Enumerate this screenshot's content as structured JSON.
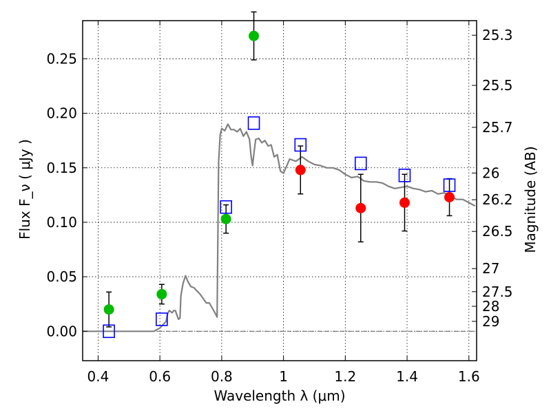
{
  "chart_data": {
    "type": "scatter",
    "title": "",
    "xlabel": "Wavelength  λ (μm)",
    "ylabel": "Flux  F_ν  ( μJy )",
    "ylabel_right": "Magnitude (AB)",
    "xlim": [
      0.35,
      1.625
    ],
    "ylim": [
      -0.027,
      0.285
    ],
    "grid": true,
    "x_ticks": [
      0.4,
      0.6,
      0.8,
      1.0,
      1.2,
      1.4,
      1.6
    ],
    "x_tick_labels": [
      "0.4",
      "0.6",
      "0.8",
      "1",
      "1.2",
      "1.4",
      "1.6"
    ],
    "y_ticks": [
      0.0,
      0.05,
      0.1,
      0.15,
      0.2,
      0.25
    ],
    "y_tick_labels": [
      "0.00",
      "0.05",
      "0.10",
      "0.15",
      "0.20",
      "0.25"
    ],
    "right_ticks": [
      {
        "flux": 0.2716,
        "label": "25.3"
      },
      {
        "flux": 0.2256,
        "label": "25.5"
      },
      {
        "flux": 0.1871,
        "label": "25.7"
      },
      {
        "flux": 0.1452,
        "label": "26"
      },
      {
        "flux": 0.1207,
        "label": "26.2"
      },
      {
        "flux": 0.0916,
        "label": "26.5"
      },
      {
        "flux": 0.0575,
        "label": "27"
      },
      {
        "flux": 0.0363,
        "label": "27.5"
      },
      {
        "flux": 0.0229,
        "label": "28"
      },
      {
        "flux": 0.0091,
        "label": "29"
      }
    ],
    "series": [
      {
        "marker": "circle-green",
        "color": "#00bb00",
        "points": [
          {
            "x": 0.435,
            "y": 0.02,
            "err": 0.016
          },
          {
            "x": 0.606,
            "y": 0.034,
            "err": 0.009
          },
          {
            "x": 0.814,
            "y": 0.103,
            "err": 0.013
          },
          {
            "x": 0.904,
            "y": 0.271,
            "err": 0.022
          }
        ]
      },
      {
        "marker": "circle-red",
        "color": "#ff0000",
        "points": [
          {
            "x": 1.055,
            "y": 0.148,
            "err": 0.022
          },
          {
            "x": 1.25,
            "y": 0.113,
            "err": 0.031
          },
          {
            "x": 1.392,
            "y": 0.118,
            "err": 0.026
          },
          {
            "x": 1.537,
            "y": 0.123,
            "err": 0.017
          }
        ]
      },
      {
        "marker": "square-blue-open",
        "color": "#0000ff",
        "points": [
          {
            "x": 0.435,
            "y": 0.0
          },
          {
            "x": 0.606,
            "y": 0.011
          },
          {
            "x": 0.814,
            "y": 0.114
          },
          {
            "x": 0.904,
            "y": 0.191
          },
          {
            "x": 1.055,
            "y": 0.171
          },
          {
            "x": 1.25,
            "y": 0.154
          },
          {
            "x": 1.392,
            "y": 0.143
          },
          {
            "x": 1.537,
            "y": 0.134
          }
        ]
      },
      {
        "marker": "line-gray",
        "color": "#808080",
        "x": [
          0.35,
          0.58,
          0.6,
          0.62,
          0.625,
          0.63,
          0.635,
          0.64,
          0.645,
          0.65,
          0.655,
          0.66,
          0.665,
          0.668,
          0.675,
          0.683,
          0.69,
          0.7,
          0.71,
          0.72,
          0.73,
          0.74,
          0.75,
          0.76,
          0.77,
          0.78,
          0.785,
          0.79,
          0.795,
          0.8,
          0.81,
          0.82,
          0.83,
          0.84,
          0.85,
          0.86,
          0.87,
          0.88,
          0.89,
          0.895,
          0.9,
          0.905,
          0.91,
          0.92,
          0.93,
          0.94,
          0.95,
          0.96,
          0.97,
          0.98,
          0.99,
          1.0,
          1.02,
          1.04,
          1.06,
          1.08,
          1.1,
          1.12,
          1.14,
          1.16,
          1.18,
          1.2,
          1.22,
          1.24,
          1.26,
          1.28,
          1.3,
          1.32,
          1.34,
          1.36,
          1.38,
          1.4,
          1.42,
          1.44,
          1.46,
          1.48,
          1.5,
          1.52,
          1.54,
          1.56,
          1.58,
          1.6,
          1.62
        ],
        "y": [
          0.0,
          0.0,
          0.003,
          0.009,
          0.016,
          0.019,
          0.018,
          0.017,
          0.019,
          0.019,
          0.015,
          0.011,
          0.012,
          0.033,
          0.044,
          0.051,
          0.046,
          0.041,
          0.04,
          0.037,
          0.034,
          0.03,
          0.026,
          0.026,
          0.021,
          0.016,
          0.013,
          0.155,
          0.18,
          0.186,
          0.184,
          0.19,
          0.185,
          0.185,
          0.183,
          0.186,
          0.179,
          0.183,
          0.176,
          0.161,
          0.152,
          0.165,
          0.176,
          0.177,
          0.173,
          0.175,
          0.17,
          0.171,
          0.16,
          0.162,
          0.147,
          0.145,
          0.158,
          0.156,
          0.16,
          0.156,
          0.153,
          0.152,
          0.15,
          0.15,
          0.148,
          0.144,
          0.141,
          0.142,
          0.138,
          0.137,
          0.137,
          0.136,
          0.133,
          0.131,
          0.132,
          0.133,
          0.131,
          0.13,
          0.128,
          0.129,
          0.126,
          0.127,
          0.124,
          0.121,
          0.121,
          0.118,
          0.115
        ]
      }
    ]
  }
}
